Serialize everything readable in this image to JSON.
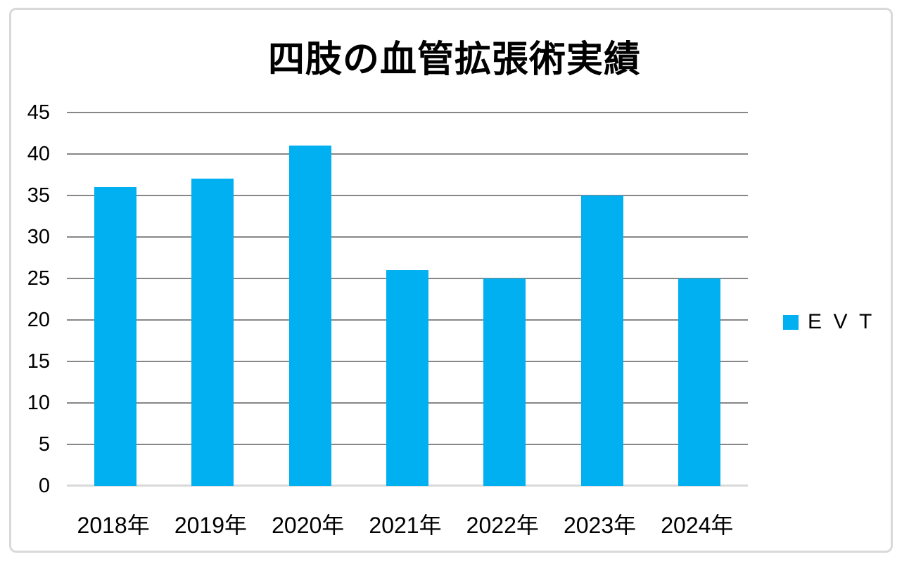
{
  "chart_data": {
    "type": "bar",
    "title": "四肢の血管拡張術実績",
    "categories": [
      "2018年",
      "2019年",
      "2020年",
      "2021年",
      "2022年",
      "2023年",
      "2024年"
    ],
    "series": [
      {
        "name": "EVT",
        "values": [
          36,
          37,
          41,
          26,
          25,
          35,
          25
        ]
      }
    ],
    "xlabel": "",
    "ylabel": "",
    "ylim": [
      0,
      45
    ],
    "yticks": [
      0,
      5,
      10,
      15,
      20,
      25,
      30,
      35,
      40,
      45
    ],
    "grid": true,
    "legend_position": "right",
    "colors": {
      "bar": "#00B0F0",
      "gridline": "#878787",
      "baseline": "#d9d9d9",
      "frame_border": "#d9d9d9",
      "text": "#000000",
      "background": "#ffffff"
    }
  }
}
